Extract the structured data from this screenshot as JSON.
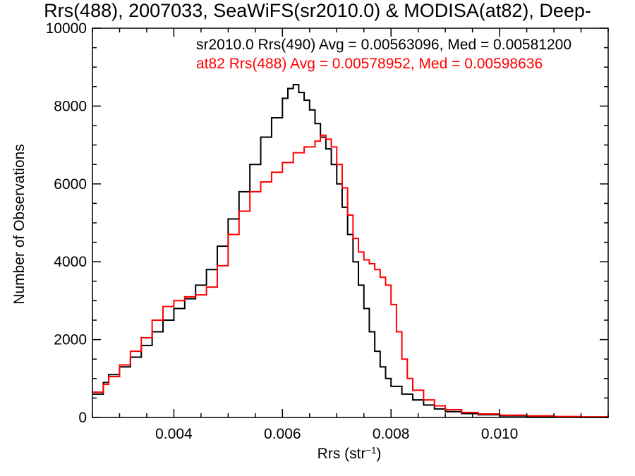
{
  "chart_data": {
    "type": "line",
    "title": "Rrs(488), 2007033, SeaWiFS(sr2010.0) & MODISA(at82), Deep-",
    "xlabel": "Rrs (str",
    "xlabel_sup": "−1",
    "xlabel_end": ")",
    "ylabel": "Number of Observations",
    "xlim": [
      0.0025,
      0.012
    ],
    "ylim": [
      0,
      10000
    ],
    "xticks": [
      {
        "value": 0.004,
        "label": "0.004"
      },
      {
        "value": 0.006,
        "label": "0.006"
      },
      {
        "value": 0.008,
        "label": "0.008"
      },
      {
        "value": 0.01,
        "label": "0.010"
      }
    ],
    "yticks": [
      {
        "value": 0,
        "label": "0"
      },
      {
        "value": 2000,
        "label": "2000"
      },
      {
        "value": 4000,
        "label": "4000"
      },
      {
        "value": 6000,
        "label": "6000"
      },
      {
        "value": 8000,
        "label": "8000"
      },
      {
        "value": 10000,
        "label": "10000"
      }
    ],
    "step": "histogram",
    "series": [
      {
        "name": "sr2010.0 Rrs(490) Avg = 0.00563096, Med = 0.00581200",
        "color": "#000000",
        "points": [
          [
            0.0025,
            600
          ],
          [
            0.0027,
            900
          ],
          [
            0.0028,
            1100
          ],
          [
            0.003,
            1300
          ],
          [
            0.0032,
            1550
          ],
          [
            0.0034,
            1850
          ],
          [
            0.0036,
            2200
          ],
          [
            0.0038,
            2500
          ],
          [
            0.004,
            2800
          ],
          [
            0.0042,
            3050
          ],
          [
            0.0044,
            3400
          ],
          [
            0.0046,
            3800
          ],
          [
            0.0048,
            4400
          ],
          [
            0.005,
            5100
          ],
          [
            0.0052,
            5800
          ],
          [
            0.0054,
            6500
          ],
          [
            0.0056,
            7200
          ],
          [
            0.0058,
            7700
          ],
          [
            0.006,
            8200
          ],
          [
            0.0061,
            8450
          ],
          [
            0.0062,
            8550
          ],
          [
            0.0063,
            8350
          ],
          [
            0.0064,
            8150
          ],
          [
            0.0065,
            7900
          ],
          [
            0.0066,
            7550
          ],
          [
            0.0067,
            7200
          ],
          [
            0.0068,
            6900
          ],
          [
            0.0069,
            6500
          ],
          [
            0.007,
            6000
          ],
          [
            0.0071,
            5400
          ],
          [
            0.0072,
            4700
          ],
          [
            0.0073,
            4000
          ],
          [
            0.0074,
            3400
          ],
          [
            0.0075,
            2800
          ],
          [
            0.0076,
            2200
          ],
          [
            0.0077,
            1700
          ],
          [
            0.0078,
            1300
          ],
          [
            0.0079,
            1000
          ],
          [
            0.008,
            800
          ],
          [
            0.0082,
            600
          ],
          [
            0.0084,
            450
          ],
          [
            0.0086,
            320
          ],
          [
            0.0088,
            220
          ],
          [
            0.009,
            150
          ],
          [
            0.0093,
            100
          ],
          [
            0.0096,
            70
          ],
          [
            0.01,
            40
          ],
          [
            0.0105,
            20
          ],
          [
            0.011,
            10
          ],
          [
            0.0115,
            5
          ],
          [
            0.012,
            3
          ]
        ]
      },
      {
        "name": "at82 Rrs(488) Avg = 0.00578952, Med = 0.00598636",
        "color": "#ff0000",
        "points": [
          [
            0.0025,
            650
          ],
          [
            0.0027,
            850
          ],
          [
            0.0028,
            1050
          ],
          [
            0.003,
            1350
          ],
          [
            0.0032,
            1700
          ],
          [
            0.0034,
            2050
          ],
          [
            0.0036,
            2500
          ],
          [
            0.0038,
            2850
          ],
          [
            0.004,
            3000
          ],
          [
            0.0042,
            3100
          ],
          [
            0.0044,
            3150
          ],
          [
            0.0046,
            3350
          ],
          [
            0.0048,
            3900
          ],
          [
            0.005,
            4700
          ],
          [
            0.0052,
            5300
          ],
          [
            0.0054,
            5800
          ],
          [
            0.0056,
            6050
          ],
          [
            0.0058,
            6300
          ],
          [
            0.006,
            6550
          ],
          [
            0.0062,
            6800
          ],
          [
            0.0064,
            6950
          ],
          [
            0.0066,
            7100
          ],
          [
            0.0067,
            7250
          ],
          [
            0.0068,
            7150
          ],
          [
            0.0069,
            6950
          ],
          [
            0.007,
            6500
          ],
          [
            0.0071,
            5900
          ],
          [
            0.0072,
            5200
          ],
          [
            0.0073,
            4600
          ],
          [
            0.0074,
            4250
          ],
          [
            0.0075,
            4050
          ],
          [
            0.0076,
            3950
          ],
          [
            0.0077,
            3800
          ],
          [
            0.0078,
            3600
          ],
          [
            0.0079,
            3400
          ],
          [
            0.008,
            2900
          ],
          [
            0.0081,
            2200
          ],
          [
            0.0082,
            1500
          ],
          [
            0.0083,
            1000
          ],
          [
            0.0084,
            700
          ],
          [
            0.0086,
            450
          ],
          [
            0.0088,
            300
          ],
          [
            0.009,
            200
          ],
          [
            0.0093,
            130
          ],
          [
            0.0096,
            90
          ],
          [
            0.01,
            60
          ],
          [
            0.0105,
            40
          ],
          [
            0.011,
            25
          ],
          [
            0.0115,
            15
          ],
          [
            0.012,
            10
          ]
        ]
      }
    ]
  }
}
